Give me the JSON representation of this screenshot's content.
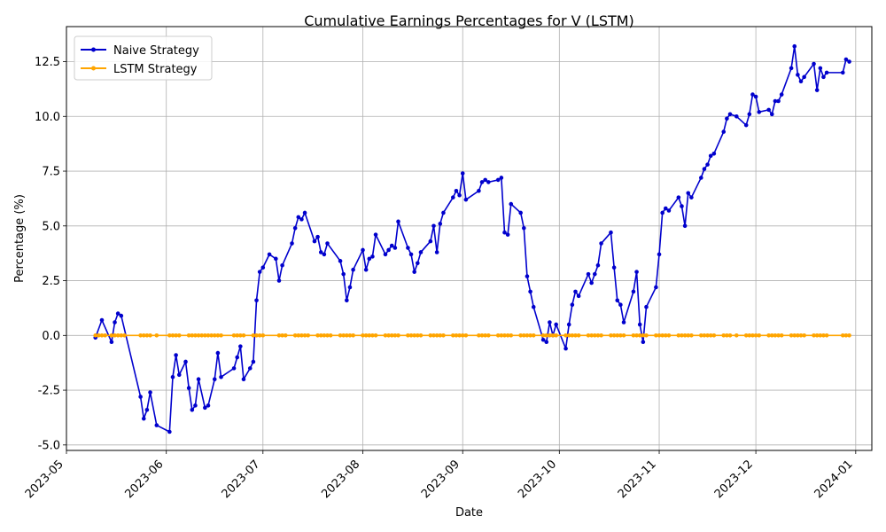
{
  "chart_data": {
    "type": "line",
    "title": "Cumulative Earnings Percentages for V (LSTM)",
    "xlabel": "Date",
    "ylabel": "Percentage (%)",
    "xlim": [
      "2023-05-01",
      "2024-01-06"
    ],
    "ylim": [
      -5.25,
      14.1
    ],
    "x_ticks": [
      "2023-05",
      "2023-06",
      "2023-07",
      "2023-08",
      "2023-09",
      "2023-10",
      "2023-11",
      "2023-12",
      "2024-01"
    ],
    "y_ticks": [
      "-5.0",
      "-2.5",
      "0.0",
      "2.5",
      "5.0",
      "7.5",
      "10.0",
      "12.5"
    ],
    "grid": true,
    "legend_position": "top-left",
    "series": [
      {
        "name": "Naive Strategy",
        "color": "#0000cd",
        "points": [
          [
            "2023-05-10",
            -0.1
          ],
          [
            "2023-05-12",
            0.7
          ],
          [
            "2023-05-15",
            -0.3
          ],
          [
            "2023-05-16",
            0.6
          ],
          [
            "2023-05-17",
            1.0
          ],
          [
            "2023-05-18",
            0.9
          ],
          [
            "2023-05-24",
            -2.8
          ],
          [
            "2023-05-25",
            -3.8
          ],
          [
            "2023-05-26",
            -3.4
          ],
          [
            "2023-05-27",
            -2.6
          ],
          [
            "2023-05-29",
            -4.1
          ],
          [
            "2023-06-02",
            -4.4
          ],
          [
            "2023-06-03",
            -1.9
          ],
          [
            "2023-06-04",
            -0.9
          ],
          [
            "2023-06-05",
            -1.8
          ],
          [
            "2023-06-07",
            -1.2
          ],
          [
            "2023-06-08",
            -2.4
          ],
          [
            "2023-06-09",
            -3.4
          ],
          [
            "2023-06-10",
            -3.2
          ],
          [
            "2023-06-11",
            -2.0
          ],
          [
            "2023-06-13",
            -3.3
          ],
          [
            "2023-06-14",
            -3.2
          ],
          [
            "2023-06-16",
            -2.0
          ],
          [
            "2023-06-17",
            -0.8
          ],
          [
            "2023-06-18",
            -1.9
          ],
          [
            "2023-06-22",
            -1.5
          ],
          [
            "2023-06-23",
            -1.0
          ],
          [
            "2023-06-24",
            -0.5
          ],
          [
            "2023-06-25",
            -2.0
          ],
          [
            "2023-06-27",
            -1.5
          ],
          [
            "2023-06-28",
            -1.2
          ],
          [
            "2023-06-29",
            1.6
          ],
          [
            "2023-06-30",
            2.9
          ],
          [
            "2023-07-01",
            3.1
          ],
          [
            "2023-07-03",
            3.7
          ],
          [
            "2023-07-05",
            3.5
          ],
          [
            "2023-07-06",
            2.5
          ],
          [
            "2023-07-07",
            3.2
          ],
          [
            "2023-07-10",
            4.2
          ],
          [
            "2023-07-11",
            4.9
          ],
          [
            "2023-07-12",
            5.4
          ],
          [
            "2023-07-13",
            5.3
          ],
          [
            "2023-07-14",
            5.6
          ],
          [
            "2023-07-17",
            4.3
          ],
          [
            "2023-07-18",
            4.5
          ],
          [
            "2023-07-19",
            3.8
          ],
          [
            "2023-07-20",
            3.7
          ],
          [
            "2023-07-21",
            4.2
          ],
          [
            "2023-07-25",
            3.4
          ],
          [
            "2023-07-26",
            2.8
          ],
          [
            "2023-07-27",
            1.6
          ],
          [
            "2023-07-28",
            2.2
          ],
          [
            "2023-07-29",
            3.0
          ],
          [
            "2023-08-01",
            3.9
          ],
          [
            "2023-08-02",
            3.0
          ],
          [
            "2023-08-03",
            3.5
          ],
          [
            "2023-08-04",
            3.6
          ],
          [
            "2023-08-05",
            4.6
          ],
          [
            "2023-08-08",
            3.7
          ],
          [
            "2023-08-09",
            3.9
          ],
          [
            "2023-08-10",
            4.1
          ],
          [
            "2023-08-11",
            4.0
          ],
          [
            "2023-08-12",
            5.2
          ],
          [
            "2023-08-15",
            4.0
          ],
          [
            "2023-08-16",
            3.7
          ],
          [
            "2023-08-17",
            2.9
          ],
          [
            "2023-08-18",
            3.3
          ],
          [
            "2023-08-19",
            3.8
          ],
          [
            "2023-08-22",
            4.3
          ],
          [
            "2023-08-23",
            5.0
          ],
          [
            "2023-08-24",
            3.8
          ],
          [
            "2023-08-25",
            5.1
          ],
          [
            "2023-08-26",
            5.6
          ],
          [
            "2023-08-29",
            6.3
          ],
          [
            "2023-08-30",
            6.6
          ],
          [
            "2023-08-31",
            6.4
          ],
          [
            "2023-09-01",
            7.4
          ],
          [
            "2023-09-02",
            6.2
          ],
          [
            "2023-09-06",
            6.6
          ],
          [
            "2023-09-07",
            7.0
          ],
          [
            "2023-09-08",
            7.1
          ],
          [
            "2023-09-09",
            7.0
          ],
          [
            "2023-09-12",
            7.1
          ],
          [
            "2023-09-13",
            7.2
          ],
          [
            "2023-09-14",
            4.7
          ],
          [
            "2023-09-15",
            4.6
          ],
          [
            "2023-09-16",
            6.0
          ],
          [
            "2023-09-19",
            5.6
          ],
          [
            "2023-09-20",
            4.9
          ],
          [
            "2023-09-21",
            2.7
          ],
          [
            "2023-09-22",
            2.0
          ],
          [
            "2023-09-23",
            1.3
          ],
          [
            "2023-09-26",
            -0.2
          ],
          [
            "2023-09-27",
            -0.3
          ],
          [
            "2023-09-28",
            0.6
          ],
          [
            "2023-09-29",
            0.0
          ],
          [
            "2023-09-30",
            0.5
          ],
          [
            "2023-10-03",
            -0.6
          ],
          [
            "2023-10-04",
            0.5
          ],
          [
            "2023-10-05",
            1.4
          ],
          [
            "2023-10-06",
            2.0
          ],
          [
            "2023-10-07",
            1.8
          ],
          [
            "2023-10-10",
            2.8
          ],
          [
            "2023-10-11",
            2.4
          ],
          [
            "2023-10-12",
            2.8
          ],
          [
            "2023-10-13",
            3.2
          ],
          [
            "2023-10-14",
            4.2
          ],
          [
            "2023-10-17",
            4.7
          ],
          [
            "2023-10-18",
            3.1
          ],
          [
            "2023-10-19",
            1.6
          ],
          [
            "2023-10-20",
            1.4
          ],
          [
            "2023-10-21",
            0.6
          ],
          [
            "2023-10-24",
            2.0
          ],
          [
            "2023-10-25",
            2.9
          ],
          [
            "2023-10-26",
            0.5
          ],
          [
            "2023-10-27",
            -0.3
          ],
          [
            "2023-10-28",
            1.3
          ],
          [
            "2023-10-31",
            2.2
          ],
          [
            "2023-11-01",
            3.7
          ],
          [
            "2023-11-02",
            5.6
          ],
          [
            "2023-11-03",
            5.8
          ],
          [
            "2023-11-04",
            5.7
          ],
          [
            "2023-11-07",
            6.3
          ],
          [
            "2023-11-08",
            5.9
          ],
          [
            "2023-11-09",
            5.0
          ],
          [
            "2023-11-10",
            6.5
          ],
          [
            "2023-11-11",
            6.3
          ],
          [
            "2023-11-14",
            7.2
          ],
          [
            "2023-11-15",
            7.6
          ],
          [
            "2023-11-16",
            7.8
          ],
          [
            "2023-11-17",
            8.2
          ],
          [
            "2023-11-18",
            8.3
          ],
          [
            "2023-11-21",
            9.3
          ],
          [
            "2023-11-22",
            9.9
          ],
          [
            "2023-11-23",
            10.1
          ],
          [
            "2023-11-25",
            10.0
          ],
          [
            "2023-11-28",
            9.6
          ],
          [
            "2023-11-29",
            10.1
          ],
          [
            "2023-11-30",
            11.0
          ],
          [
            "2023-12-01",
            10.9
          ],
          [
            "2023-12-02",
            10.2
          ],
          [
            "2023-12-05",
            10.3
          ],
          [
            "2023-12-06",
            10.1
          ],
          [
            "2023-12-07",
            10.7
          ],
          [
            "2023-12-08",
            10.7
          ],
          [
            "2023-12-09",
            11.0
          ],
          [
            "2023-12-12",
            12.2
          ],
          [
            "2023-12-13",
            13.2
          ],
          [
            "2023-12-14",
            11.9
          ],
          [
            "2023-12-15",
            11.6
          ],
          [
            "2023-12-16",
            11.8
          ],
          [
            "2023-12-19",
            12.4
          ],
          [
            "2023-12-20",
            11.2
          ],
          [
            "2023-12-21",
            12.2
          ],
          [
            "2023-12-22",
            11.8
          ],
          [
            "2023-12-23",
            12.0
          ],
          [
            "2023-12-28",
            12.0
          ],
          [
            "2023-12-29",
            12.6
          ],
          [
            "2023-12-30",
            12.5
          ]
        ]
      },
      {
        "name": "LSTM Strategy",
        "color": "#ffa500",
        "value": 0.0,
        "dates": [
          "2023-05-10",
          "2023-05-11",
          "2023-05-12",
          "2023-05-13",
          "2023-05-15",
          "2023-05-16",
          "2023-05-17",
          "2023-05-18",
          "2023-05-19",
          "2023-05-24",
          "2023-05-25",
          "2023-05-26",
          "2023-05-27",
          "2023-05-29",
          "2023-06-02",
          "2023-06-03",
          "2023-06-04",
          "2023-06-05",
          "2023-06-08",
          "2023-06-09",
          "2023-06-10",
          "2023-06-11",
          "2023-06-12",
          "2023-06-13",
          "2023-06-14",
          "2023-06-15",
          "2023-06-16",
          "2023-06-17",
          "2023-06-18",
          "2023-06-22",
          "2023-06-23",
          "2023-06-24",
          "2023-06-25",
          "2023-06-28",
          "2023-06-29",
          "2023-06-30",
          "2023-07-01",
          "2023-07-06",
          "2023-07-07",
          "2023-07-08",
          "2023-07-11",
          "2023-07-12",
          "2023-07-13",
          "2023-07-14",
          "2023-07-15",
          "2023-07-18",
          "2023-07-19",
          "2023-07-20",
          "2023-07-21",
          "2023-07-22",
          "2023-07-25",
          "2023-07-26",
          "2023-07-27",
          "2023-07-28",
          "2023-07-29",
          "2023-08-01",
          "2023-08-02",
          "2023-08-03",
          "2023-08-04",
          "2023-08-05",
          "2023-08-08",
          "2023-08-09",
          "2023-08-10",
          "2023-08-11",
          "2023-08-12",
          "2023-08-15",
          "2023-08-16",
          "2023-08-17",
          "2023-08-18",
          "2023-08-19",
          "2023-08-22",
          "2023-08-23",
          "2023-08-24",
          "2023-08-25",
          "2023-08-26",
          "2023-08-29",
          "2023-08-30",
          "2023-08-31",
          "2023-09-01",
          "2023-09-02",
          "2023-09-06",
          "2023-09-07",
          "2023-09-08",
          "2023-09-09",
          "2023-09-12",
          "2023-09-13",
          "2023-09-14",
          "2023-09-15",
          "2023-09-16",
          "2023-09-19",
          "2023-09-20",
          "2023-09-21",
          "2023-09-22",
          "2023-09-23",
          "2023-09-26",
          "2023-09-27",
          "2023-09-28",
          "2023-09-29",
          "2023-09-30",
          "2023-10-03",
          "2023-10-04",
          "2023-10-05",
          "2023-10-06",
          "2023-10-07",
          "2023-10-10",
          "2023-10-11",
          "2023-10-12",
          "2023-10-13",
          "2023-10-14",
          "2023-10-17",
          "2023-10-18",
          "2023-10-19",
          "2023-10-20",
          "2023-10-21",
          "2023-10-24",
          "2023-10-25",
          "2023-10-26",
          "2023-10-27",
          "2023-10-28",
          "2023-10-31",
          "2023-11-01",
          "2023-11-02",
          "2023-11-03",
          "2023-11-04",
          "2023-11-07",
          "2023-11-08",
          "2023-11-09",
          "2023-11-10",
          "2023-11-11",
          "2023-11-14",
          "2023-11-15",
          "2023-11-16",
          "2023-11-17",
          "2023-11-18",
          "2023-11-21",
          "2023-11-22",
          "2023-11-23",
          "2023-11-25",
          "2023-11-28",
          "2023-11-29",
          "2023-11-30",
          "2023-12-01",
          "2023-12-02",
          "2023-12-05",
          "2023-12-06",
          "2023-12-07",
          "2023-12-08",
          "2023-12-09",
          "2023-12-12",
          "2023-12-13",
          "2023-12-14",
          "2023-12-15",
          "2023-12-16",
          "2023-12-19",
          "2023-12-20",
          "2023-12-21",
          "2023-12-22",
          "2023-12-23",
          "2023-12-28",
          "2023-12-29",
          "2023-12-30"
        ]
      }
    ]
  }
}
